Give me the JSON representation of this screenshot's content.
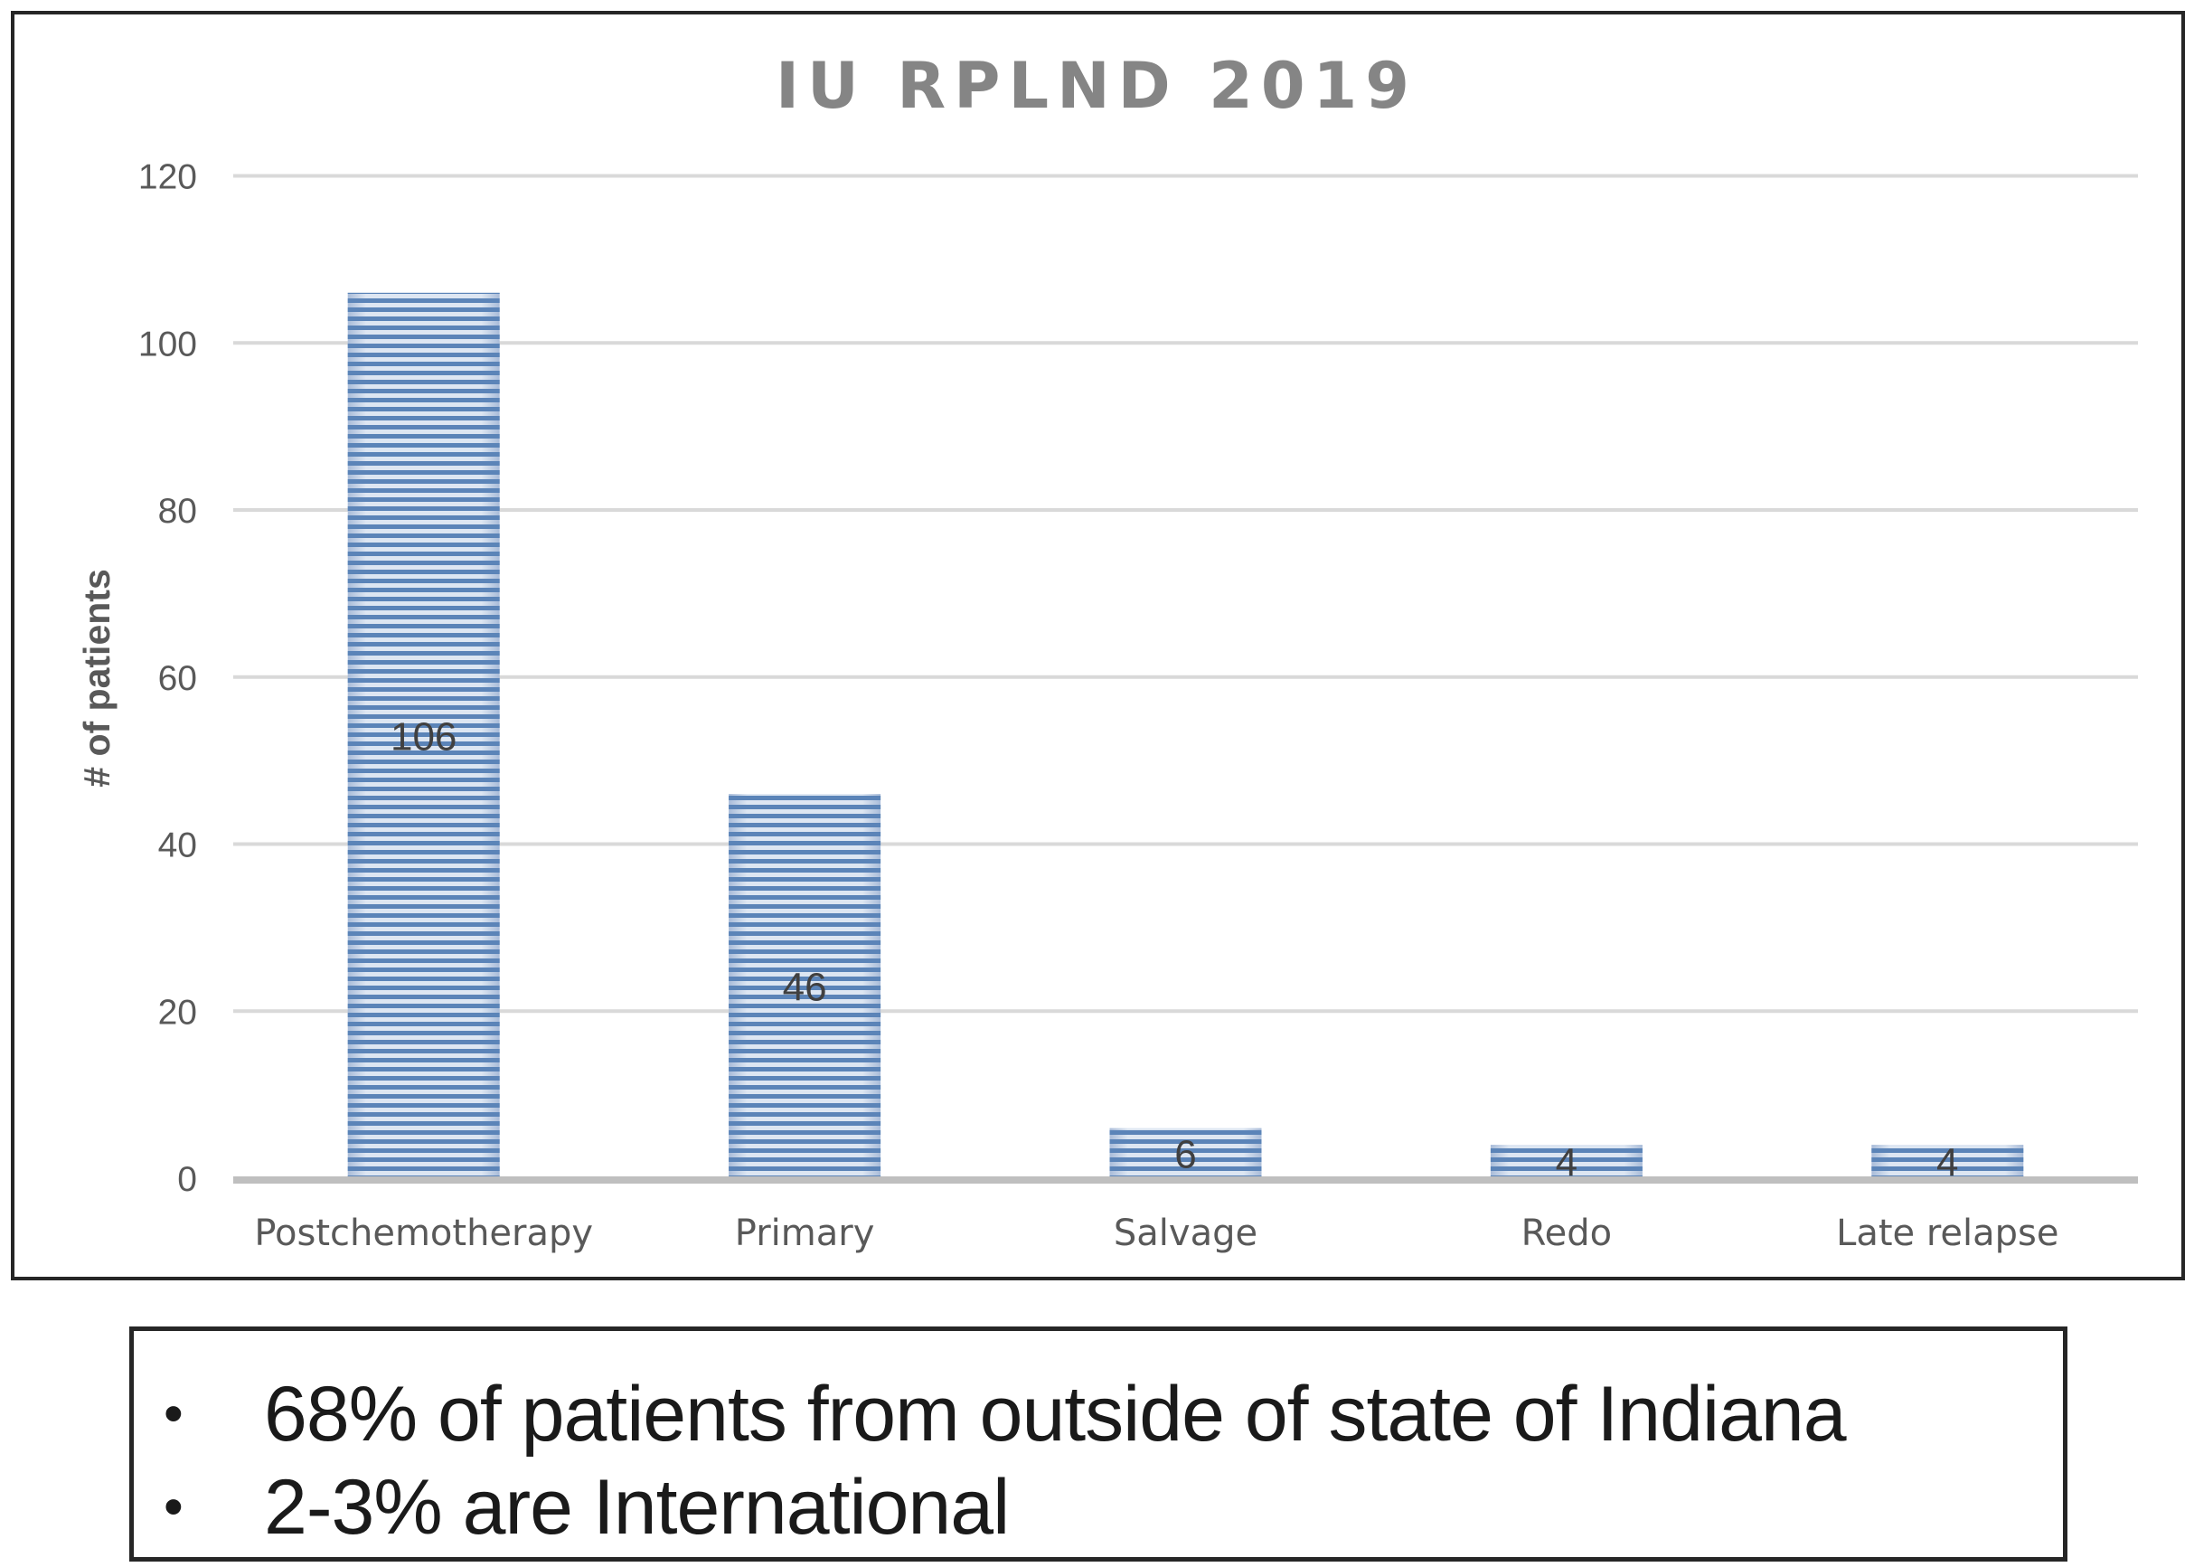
{
  "chart_data": {
    "type": "bar",
    "title": "IU RPLND 2019",
    "xlabel": "",
    "ylabel": "# of patients",
    "categories": [
      "Postchemotherapy",
      "Primary",
      "Salvage",
      "Redo",
      "Late relapse"
    ],
    "values": [
      106,
      46,
      6,
      4,
      4
    ],
    "data_labels": [
      "106",
      "46",
      "6",
      "4",
      "4"
    ],
    "ylim": [
      0,
      120
    ],
    "yticks": [
      0,
      20,
      40,
      60,
      80,
      100,
      120
    ],
    "grid": true,
    "legend": "none",
    "bar_color": "#5b84b8",
    "bar_pattern": "horizontal-stripes"
  },
  "notes": {
    "bullet": "•",
    "items": [
      "68% of patients from outside of state of Indiana",
      "2-3% are International"
    ]
  }
}
